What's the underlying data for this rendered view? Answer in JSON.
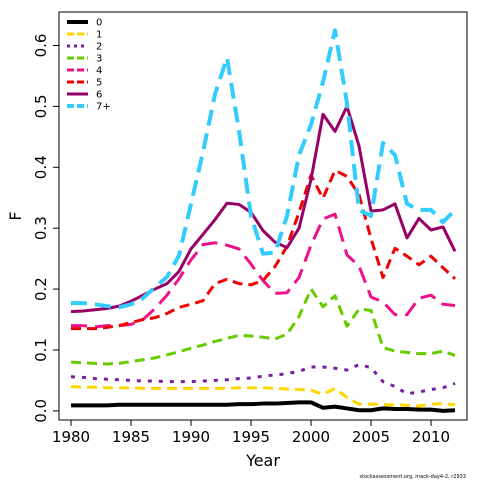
{
  "chart_data": {
    "type": "line",
    "xlabel": "Year",
    "ylabel": "F",
    "xlim": [
      1979,
      2013
    ],
    "ylim": [
      -0.015,
      0.655
    ],
    "xticks": [
      1980,
      1985,
      1990,
      1995,
      2000,
      2005,
      2010
    ],
    "yticks": [
      0.0,
      0.1,
      0.2,
      0.3,
      0.4,
      0.5,
      0.6
    ],
    "ytick_labels": [
      "0.0",
      "0.1",
      "0.2",
      "0.3",
      "0.4",
      "0.5",
      "0.6"
    ],
    "legend_position": "top-left",
    "credit": "stockassessment.org, mack-day4-2, r2933",
    "x": [
      1980,
      1981,
      1982,
      1983,
      1984,
      1985,
      1986,
      1987,
      1988,
      1989,
      1990,
      1991,
      1992,
      1993,
      1994,
      1995,
      1996,
      1997,
      1998,
      1999,
      2000,
      2001,
      2002,
      2003,
      2004,
      2005,
      2006,
      2007,
      2008,
      2009,
      2010,
      2011,
      2012
    ],
    "series": [
      {
        "name": "0",
        "color": "#000000",
        "dash": "solid",
        "width": 4,
        "values": [
          0.009,
          0.009,
          0.009,
          0.009,
          0.01,
          0.01,
          0.01,
          0.01,
          0.01,
          0.01,
          0.01,
          0.01,
          0.01,
          0.01,
          0.011,
          0.011,
          0.012,
          0.012,
          0.013,
          0.014,
          0.014,
          0.005,
          0.007,
          0.004,
          0.001,
          0.001,
          0.004,
          0.003,
          0.003,
          0.002,
          0.002,
          0.0,
          0.001
        ]
      },
      {
        "name": "1",
        "color": "#ffd700",
        "dash": "dashed",
        "width": 3,
        "values": [
          0.04,
          0.039,
          0.039,
          0.038,
          0.038,
          0.038,
          0.037,
          0.037,
          0.037,
          0.037,
          0.037,
          0.037,
          0.037,
          0.037,
          0.038,
          0.038,
          0.038,
          0.037,
          0.036,
          0.035,
          0.034,
          0.027,
          0.037,
          0.022,
          0.011,
          0.011,
          0.01,
          0.01,
          0.009,
          0.008,
          0.011,
          0.012,
          0.01
        ]
      },
      {
        "name": "2",
        "color": "#7a1fa2",
        "dash": "dotted",
        "width": 3,
        "values": [
          0.056,
          0.055,
          0.053,
          0.052,
          0.051,
          0.05,
          0.049,
          0.049,
          0.048,
          0.048,
          0.048,
          0.049,
          0.05,
          0.051,
          0.053,
          0.054,
          0.057,
          0.059,
          0.061,
          0.065,
          0.072,
          0.072,
          0.07,
          0.067,
          0.076,
          0.071,
          0.048,
          0.04,
          0.028,
          0.031,
          0.035,
          0.038,
          0.045
        ]
      },
      {
        "name": "3",
        "color": "#66cc00",
        "dash": "dashed",
        "width": 3,
        "values": [
          0.08,
          0.079,
          0.078,
          0.077,
          0.078,
          0.081,
          0.084,
          0.087,
          0.092,
          0.097,
          0.103,
          0.108,
          0.114,
          0.119,
          0.124,
          0.123,
          0.121,
          0.118,
          0.126,
          0.155,
          0.2,
          0.171,
          0.189,
          0.139,
          0.167,
          0.165,
          0.104,
          0.098,
          0.096,
          0.094,
          0.094,
          0.098,
          0.091
        ]
      },
      {
        "name": "4",
        "color": "#ee1188",
        "dash": "longdash",
        "width": 3,
        "values": [
          0.14,
          0.14,
          0.138,
          0.14,
          0.14,
          0.142,
          0.15,
          0.168,
          0.19,
          0.217,
          0.248,
          0.273,
          0.276,
          0.272,
          0.266,
          0.241,
          0.214,
          0.193,
          0.194,
          0.219,
          0.272,
          0.315,
          0.323,
          0.256,
          0.238,
          0.187,
          0.179,
          0.158,
          0.158,
          0.185,
          0.19,
          0.175,
          0.173
        ]
      },
      {
        "name": "5",
        "color": "#ee0000",
        "dash": "dashed",
        "width": 3,
        "values": [
          0.135,
          0.135,
          0.135,
          0.137,
          0.14,
          0.145,
          0.15,
          0.153,
          0.16,
          0.17,
          0.175,
          0.181,
          0.209,
          0.216,
          0.209,
          0.207,
          0.214,
          0.237,
          0.27,
          0.326,
          0.387,
          0.349,
          0.395,
          0.385,
          0.355,
          0.283,
          0.219,
          0.267,
          0.254,
          0.24,
          0.254,
          0.235,
          0.217
        ]
      },
      {
        "name": "6",
        "color": "#990066",
        "dash": "solid",
        "width": 3,
        "values": [
          0.163,
          0.164,
          0.166,
          0.168,
          0.172,
          0.18,
          0.19,
          0.2,
          0.209,
          0.229,
          0.266,
          0.29,
          0.314,
          0.341,
          0.339,
          0.326,
          0.296,
          0.277,
          0.268,
          0.3,
          0.38,
          0.487,
          0.459,
          0.5,
          0.435,
          0.328,
          0.33,
          0.34,
          0.284,
          0.316,
          0.297,
          0.302,
          0.262
        ]
      },
      {
        "name": "7+",
        "color": "#33ccff",
        "dash": "longdash",
        "width": 4,
        "values": [
          0.177,
          0.177,
          0.175,
          0.172,
          0.17,
          0.175,
          0.185,
          0.203,
          0.22,
          0.255,
          0.34,
          0.425,
          0.52,
          0.58,
          0.46,
          0.32,
          0.258,
          0.26,
          0.32,
          0.42,
          0.47,
          0.54,
          0.625,
          0.505,
          0.33,
          0.32,
          0.44,
          0.42,
          0.34,
          0.33,
          0.33,
          0.31,
          0.33
        ]
      }
    ]
  }
}
